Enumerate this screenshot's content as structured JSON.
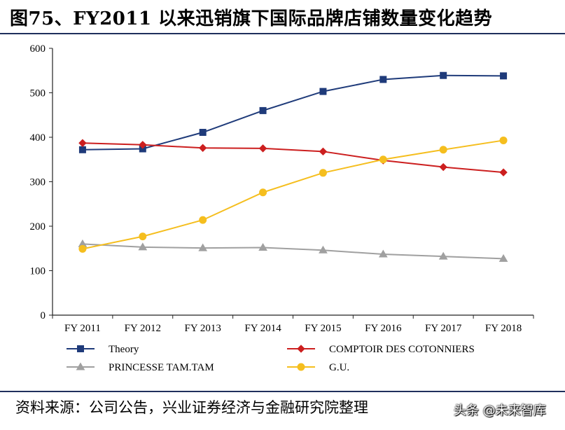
{
  "header": {
    "title": "图75、FY2011 以来迅销旗下国际品牌店铺数量变化趋势"
  },
  "footer": {
    "source": "资料来源：公司公告，兴业证券经济与金融研究院整理",
    "watermark": "头条 @未来智库"
  },
  "chart_data": {
    "type": "line",
    "title": "",
    "xlabel": "",
    "ylabel": "",
    "categories": [
      "FY 2011",
      "FY 2012",
      "FY 2013",
      "FY 2014",
      "FY 2015",
      "FY 2016",
      "FY 2017",
      "FY 2018"
    ],
    "ylim": [
      0,
      600
    ],
    "yticks": [
      0,
      100,
      200,
      300,
      400,
      500,
      600
    ],
    "grid": false,
    "legend_position": "bottom",
    "series": [
      {
        "name": "Theory",
        "color": "#1f3b7a",
        "marker": "square",
        "values": [
          372,
          374,
          411,
          460,
          503,
          530,
          539,
          538
        ]
      },
      {
        "name": "COMPTOIR DES COTONNIERS",
        "color": "#cc1f1f",
        "marker": "diamond",
        "values": [
          387,
          383,
          376,
          375,
          368,
          348,
          333,
          321
        ]
      },
      {
        "name": "PRINCESSE TAM.TAM",
        "color": "#a0a0a0",
        "marker": "triangle",
        "values": [
          160,
          153,
          151,
          152,
          146,
          137,
          132,
          127
        ]
      },
      {
        "name": "G.U.",
        "color": "#f5be1e",
        "marker": "circle",
        "values": [
          149,
          177,
          214,
          276,
          320,
          350,
          372,
          393
        ]
      }
    ]
  }
}
